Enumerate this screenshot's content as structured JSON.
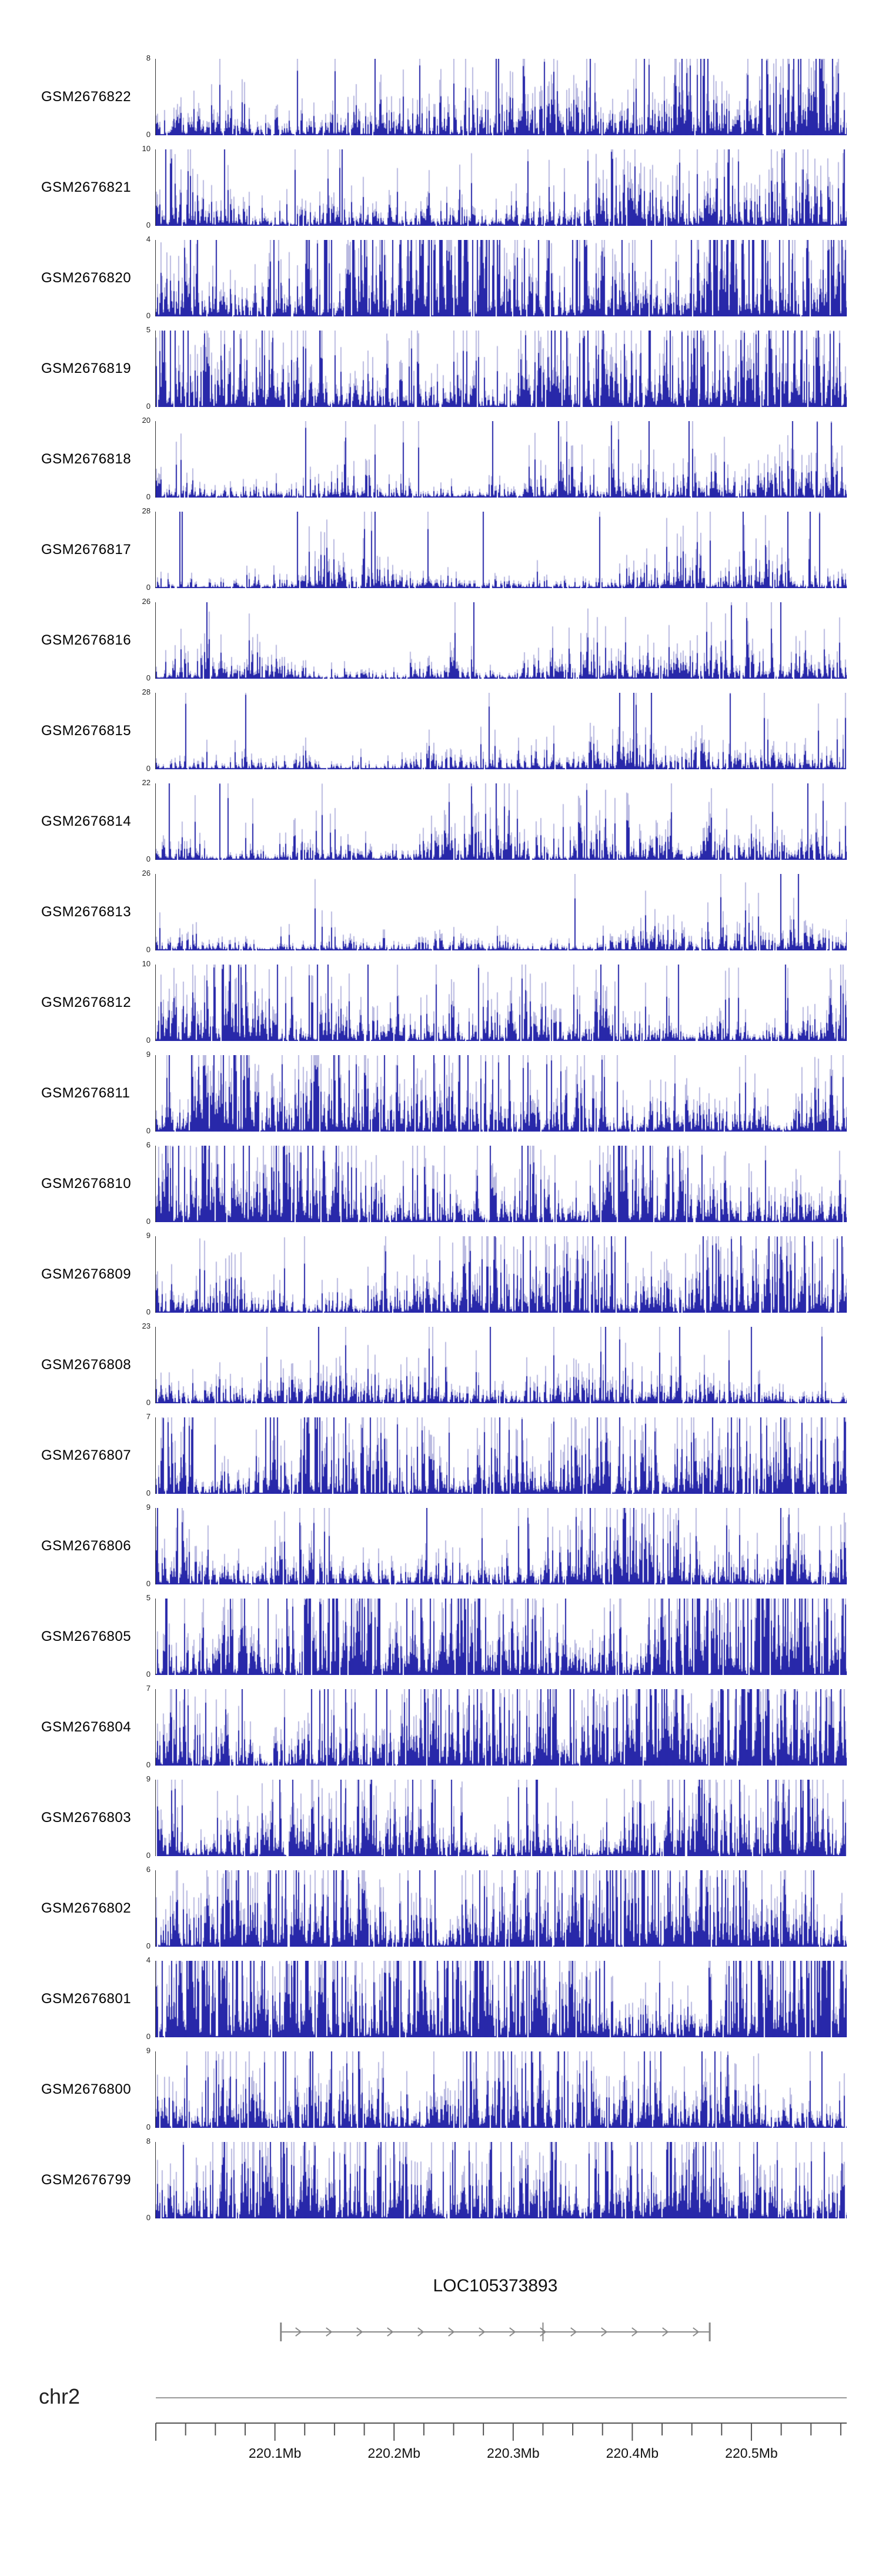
{
  "chart_data": {
    "type": "area",
    "description": "Stacked genome-browser signal tracks (read-coverage histograms) for 24 GEO samples over a region of chromosome 2, with a gene model track and a genomic coordinate ruler.",
    "colors": {
      "signal_dark": "#00009b",
      "signal_light": "#a9a9d9",
      "axis": "#333333",
      "gene": "#888888",
      "ruler": "#555555",
      "chromosome_line": "#999999"
    },
    "x_axis": {
      "unit": "Mb",
      "range_mb": [
        220.0,
        220.58
      ],
      "minor_tick_step_mb": 0.025,
      "major_ticks": [
        {
          "mb": 220.1,
          "label": "220.1Mb"
        },
        {
          "mb": 220.2,
          "label": "220.2Mb"
        },
        {
          "mb": 220.3,
          "label": "220.3Mb"
        },
        {
          "mb": 220.4,
          "label": "220.4Mb"
        },
        {
          "mb": 220.5,
          "label": "220.5Mb"
        }
      ]
    },
    "chromosome_label": "chr2",
    "gene_track": {
      "name": "LOC105373893",
      "start_mb": 220.105,
      "end_mb": 220.465,
      "strand": "forward",
      "internal_boundary_mb": 220.325
    },
    "tracks": [
      {
        "name": "GSM2676822",
        "ymin": 0,
        "ymax": 8,
        "seed": 101
      },
      {
        "name": "GSM2676821",
        "ymin": 0,
        "ymax": 10,
        "seed": 102
      },
      {
        "name": "GSM2676820",
        "ymin": 0,
        "ymax": 4,
        "seed": 103
      },
      {
        "name": "GSM2676819",
        "ymin": 0,
        "ymax": 5,
        "seed": 104
      },
      {
        "name": "GSM2676818",
        "ymin": 0,
        "ymax": 20,
        "seed": 105
      },
      {
        "name": "GSM2676817",
        "ymin": 0,
        "ymax": 28,
        "seed": 106
      },
      {
        "name": "GSM2676816",
        "ymin": 0,
        "ymax": 26,
        "seed": 107
      },
      {
        "name": "GSM2676815",
        "ymin": 0,
        "ymax": 28,
        "seed": 108
      },
      {
        "name": "GSM2676814",
        "ymin": 0,
        "ymax": 22,
        "seed": 109
      },
      {
        "name": "GSM2676813",
        "ymin": 0,
        "ymax": 26,
        "seed": 110
      },
      {
        "name": "GSM2676812",
        "ymin": 0,
        "ymax": 10,
        "seed": 111
      },
      {
        "name": "GSM2676811",
        "ymin": 0,
        "ymax": 9,
        "seed": 112
      },
      {
        "name": "GSM2676810",
        "ymin": 0,
        "ymax": 6,
        "seed": 113
      },
      {
        "name": "GSM2676809",
        "ymin": 0,
        "ymax": 9,
        "seed": 114
      },
      {
        "name": "GSM2676808",
        "ymin": 0,
        "ymax": 23,
        "seed": 115
      },
      {
        "name": "GSM2676807",
        "ymin": 0,
        "ymax": 7,
        "seed": 116
      },
      {
        "name": "GSM2676806",
        "ymin": 0,
        "ymax": 9,
        "seed": 117
      },
      {
        "name": "GSM2676805",
        "ymin": 0,
        "ymax": 5,
        "seed": 118
      },
      {
        "name": "GSM2676804",
        "ymin": 0,
        "ymax": 7,
        "seed": 119
      },
      {
        "name": "GSM2676803",
        "ymin": 0,
        "ymax": 9,
        "seed": 120
      },
      {
        "name": "GSM2676802",
        "ymin": 0,
        "ymax": 6,
        "seed": 121
      },
      {
        "name": "GSM2676801",
        "ymin": 0,
        "ymax": 4,
        "seed": 122
      },
      {
        "name": "GSM2676800",
        "ymin": 0,
        "ymax": 9,
        "seed": 123
      },
      {
        "name": "GSM2676799",
        "ymin": 0,
        "ymax": 8,
        "seed": 124
      }
    ]
  }
}
